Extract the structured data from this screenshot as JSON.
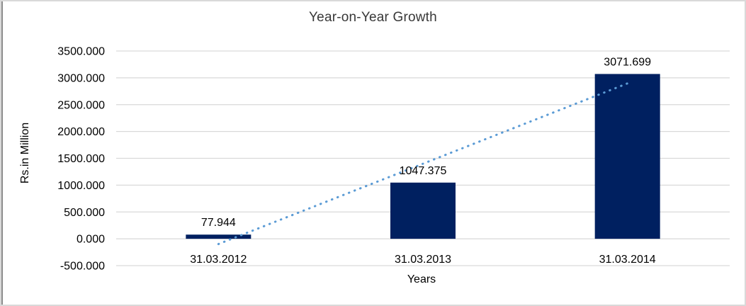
{
  "frame": {
    "background": "#ffffff",
    "border_color": "#d9d9d9",
    "left_edge_color": "#8c8c8c"
  },
  "chart_data": {
    "type": "bar",
    "title": "Year-on-Year Growth",
    "xlabel": "Years",
    "ylabel": "Rs.in Million",
    "categories": [
      "31.03.2012",
      "31.03.2013",
      "31.03.2014"
    ],
    "values": [
      77.944,
      1047.375,
      3071.699
    ],
    "data_labels": [
      "77.944",
      "1047.375",
      "3071.699"
    ],
    "ylim": [
      -500,
      3500
    ],
    "ytick_step": 500,
    "ytick_labels": [
      "-500.000",
      "0.000",
      "500.000",
      "1000.000",
      "1500.000",
      "2000.000",
      "2500.000",
      "3000.000",
      "3500.000"
    ],
    "grid": true,
    "legend": "none",
    "bar_color": "#002060",
    "gridline_color": "#d9d9d9",
    "axis_text_color": "#000000",
    "title_color": "#383838",
    "trendline": {
      "type": "linear",
      "style": "dotted",
      "color": "#5b9bd5",
      "start_value": -98,
      "end_value": 2896
    }
  }
}
